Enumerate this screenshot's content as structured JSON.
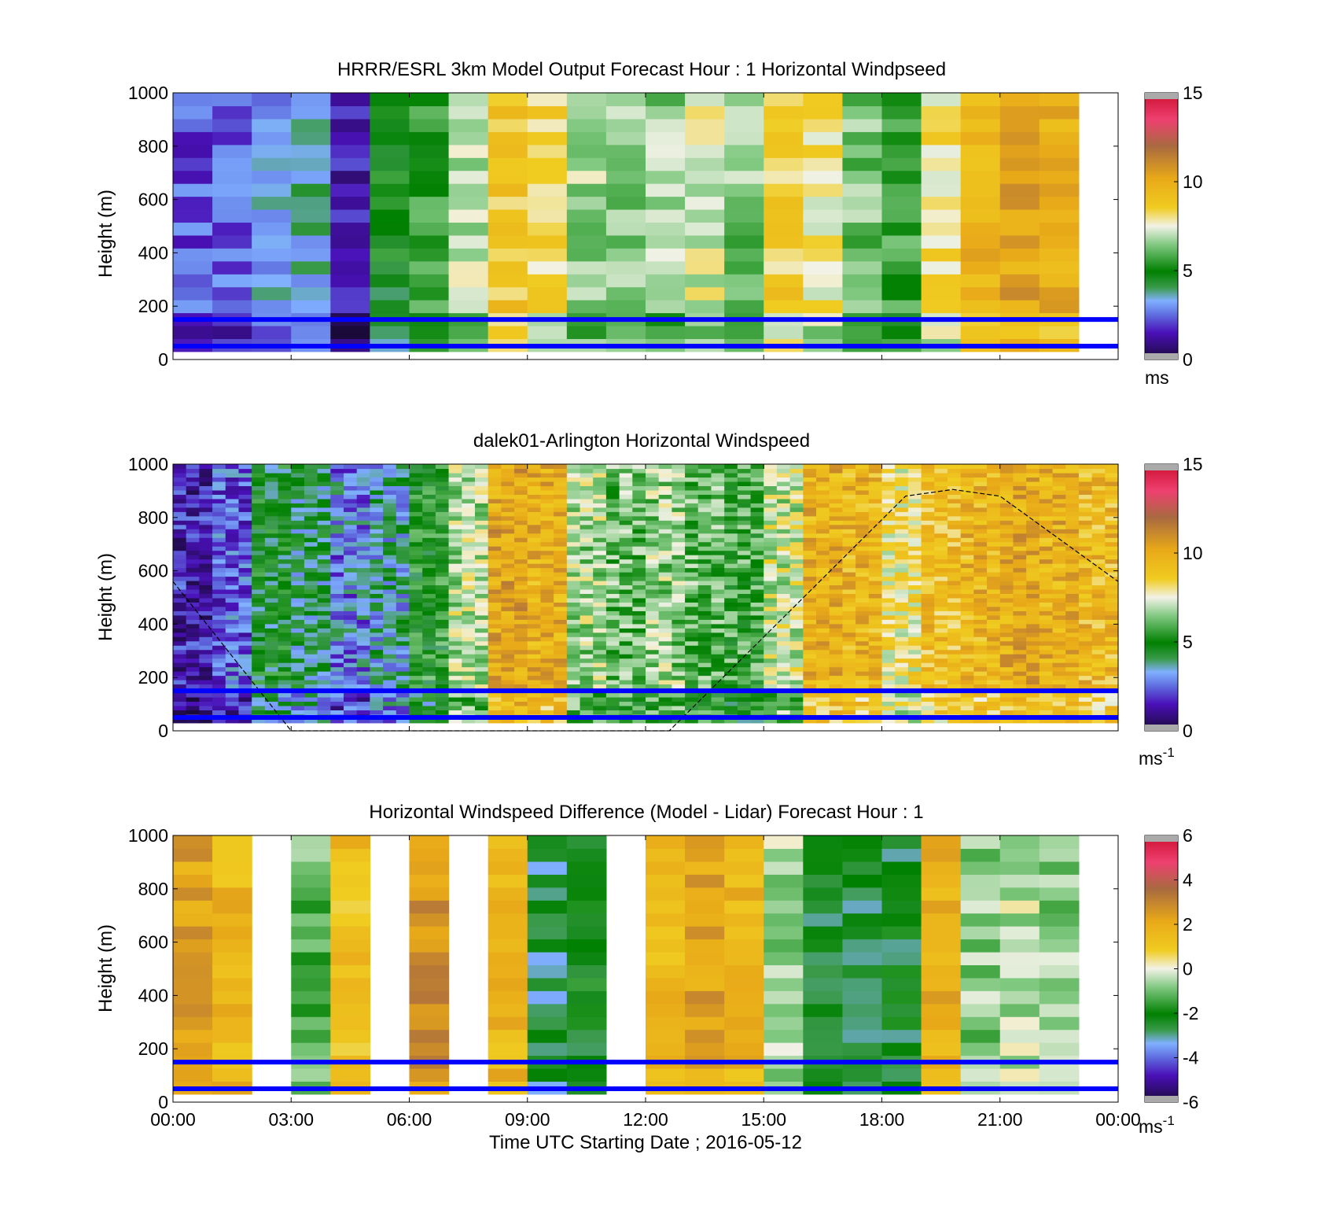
{
  "colors": {
    "height_line": "#0000ff",
    "sunline": "#000000",
    "missing": "#aaaaaa"
  },
  "x_axis": {
    "xlabel": "Time UTC  Starting Date ; 2016-05-12",
    "ticks": [
      "00:00",
      "03:00",
      "06:00",
      "09:00",
      "12:00",
      "15:00",
      "18:00",
      "21:00",
      "00:00"
    ],
    "xlim_hours": [
      0,
      24
    ]
  },
  "chart_data": [
    {
      "type": "heatmap",
      "title": "HRRR/ESRL 3km Model Output   Forecast Hour : 1 Horizontal Windpseed",
      "ylabel": "Height (m)",
      "ylim": [
        0,
        1000
      ],
      "yticks": [
        "0",
        "200",
        "400",
        "600",
        "800",
        "1000"
      ],
      "colorbar": {
        "range": [
          0,
          15
        ],
        "ticks": [
          "0",
          "5",
          "10",
          "15"
        ],
        "unit": "ms",
        "unit_sup": "",
        "colormap": "speed"
      },
      "hline_heights_m": [
        50,
        150
      ],
      "grid": "off",
      "hourly_speed_ms": [
        2.2,
        2.5,
        3.2,
        3.6,
        1.5,
        4.8,
        5.5,
        7.0,
        8.8,
        8.4,
        6.8,
        6.6,
        6.6,
        7.4,
        6.4,
        8.6,
        7.8,
        6.2,
        5.8,
        8.0,
        9.8,
        10.2,
        9.8,
        null
      ]
    },
    {
      "type": "heatmap",
      "title": "dalek01-Arlington  Horizontal Windspeed",
      "ylabel": "Height (m)",
      "ylim": [
        0,
        1000
      ],
      "yticks": [
        "0",
        "200",
        "400",
        "600",
        "800",
        "1000"
      ],
      "colorbar": {
        "range": [
          0,
          15
        ],
        "ticks": [
          "0",
          "5",
          "10",
          "15"
        ],
        "unit": "ms",
        "unit_sup": "-1",
        "colormap": "speed"
      },
      "hline_heights_m": [
        50,
        150
      ],
      "grid": "off",
      "hourly_speed_ms": [
        1.6,
        2.4,
        4.6,
        4.2,
        2.8,
        3.6,
        5.2,
        7.0,
        10.2,
        9.8,
        6.8,
        6.2,
        6.6,
        6.0,
        5.6,
        7.2,
        9.8,
        9.6,
        8.0,
        9.2,
        9.6,
        10.0,
        9.8,
        9.4
      ],
      "sun_curve": {
        "hours": [
          0,
          3.0,
          12.6,
          18.6,
          19.8,
          21.0,
          24.0
        ],
        "heights_m": [
          560,
          0,
          0,
          880,
          905,
          880,
          560
        ]
      }
    },
    {
      "type": "heatmap",
      "title": "Horizontal Windspeed Difference (Model - Lidar) Forecast Hour : 1",
      "ylabel": "Height (m)",
      "ylim": [
        0,
        1000
      ],
      "yticks": [
        "0",
        "200",
        "400",
        "600",
        "800",
        "1000"
      ],
      "colorbar": {
        "range": [
          -6,
          6
        ],
        "ticks": [
          "-6",
          "-4",
          "-2",
          "0",
          "2",
          "4",
          "6"
        ],
        "unit": "ms",
        "unit_sup": "-1",
        "colormap": "diff"
      },
      "hline_heights_m": [
        50,
        150
      ],
      "grid": "off",
      "hourly_diff_ms": [
        2.2,
        1.6,
        null,
        -1.2,
        1.4,
        null,
        2.6,
        null,
        1.6,
        -2.8,
        -2.2,
        null,
        1.6,
        2.2,
        1.6,
        -0.6,
        -2.4,
        -2.6,
        -2.4,
        1.8,
        -0.8,
        -0.4,
        -0.8,
        null
      ]
    }
  ]
}
